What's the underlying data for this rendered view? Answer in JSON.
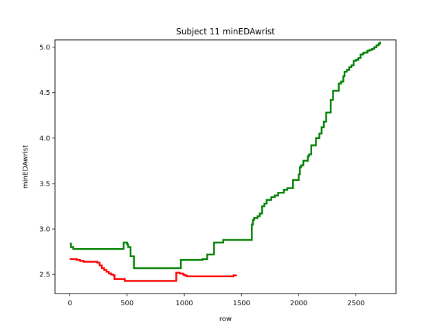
{
  "chart_data": {
    "type": "line",
    "title": "Subject 11 minEDAwrist",
    "xlabel": "row",
    "ylabel": "minEDAwrist",
    "xlim": [
      -130,
      2850
    ],
    "ylim": [
      2.29,
      5.08
    ],
    "xticks": [
      0,
      500,
      1000,
      1500,
      2000,
      2500
    ],
    "xtick_labels": [
      "0",
      "500",
      "1000",
      "1500",
      "2000",
      "2500"
    ],
    "yticks": [
      2.5,
      3.0,
      3.5,
      4.0,
      4.5,
      5.0
    ],
    "ytick_labels": [
      "2.5",
      "3.0",
      "3.5",
      "4.0",
      "4.5",
      "5.0"
    ],
    "grid": false,
    "legend": "none",
    "series": [
      {
        "color": "#008000",
        "step": true,
        "x": [
          0,
          10,
          30,
          450,
          470,
          490,
          500,
          510,
          530,
          540,
          560,
          960,
          970,
          1100,
          1150,
          1160,
          1170,
          1190,
          1200,
          1250,
          1260,
          1330,
          1340,
          1580,
          1590,
          1600,
          1610,
          1640,
          1660,
          1680,
          1700,
          1720,
          1760,
          1790,
          1820,
          1830,
          1870,
          1900,
          1950,
          1960,
          2000,
          2010,
          2020,
          2040,
          2050,
          2080,
          2090,
          2110,
          2130,
          2150,
          2160,
          2180,
          2200,
          2220,
          2240,
          2250,
          2260,
          2280,
          2300,
          2330,
          2350,
          2370,
          2390,
          2400,
          2420,
          2440,
          2460,
          2480,
          2500,
          2520,
          2540,
          2560,
          2570,
          2580,
          2600,
          2620,
          2640,
          2660,
          2680,
          2700,
          2710
        ],
        "y": [
          2.84,
          2.8,
          2.78,
          2.78,
          2.85,
          2.85,
          2.83,
          2.8,
          2.7,
          2.7,
          2.57,
          2.57,
          2.66,
          2.66,
          2.66,
          2.67,
          2.67,
          2.67,
          2.72,
          2.72,
          2.85,
          2.85,
          2.88,
          2.88,
          3.05,
          3.1,
          3.12,
          3.14,
          3.17,
          3.25,
          3.28,
          3.32,
          3.35,
          3.37,
          3.4,
          3.4,
          3.43,
          3.45,
          3.54,
          3.54,
          3.6,
          3.68,
          3.7,
          3.75,
          3.75,
          3.8,
          3.82,
          3.92,
          3.92,
          4.0,
          4.0,
          4.05,
          4.12,
          4.18,
          4.28,
          4.28,
          4.28,
          4.42,
          4.52,
          4.52,
          4.6,
          4.62,
          4.68,
          4.73,
          4.75,
          4.78,
          4.8,
          4.85,
          4.86,
          4.88,
          4.92,
          4.93,
          4.94,
          4.94,
          4.96,
          4.97,
          4.98,
          5.0,
          5.02,
          5.04,
          5.06
        ]
      },
      {
        "color": "#ff0000",
        "step": true,
        "x": [
          0,
          40,
          60,
          90,
          120,
          150,
          240,
          260,
          280,
          300,
          320,
          340,
          360,
          380,
          390,
          470,
          480,
          920,
          930,
          960,
          990,
          1000,
          1020,
          1160,
          1420,
          1430,
          1460
        ],
        "y": [
          2.67,
          2.67,
          2.66,
          2.65,
          2.64,
          2.64,
          2.63,
          2.6,
          2.57,
          2.55,
          2.53,
          2.51,
          2.5,
          2.49,
          2.45,
          2.45,
          2.43,
          2.43,
          2.52,
          2.51,
          2.5,
          2.49,
          2.48,
          2.48,
          2.48,
          2.49,
          2.49
        ]
      }
    ]
  }
}
